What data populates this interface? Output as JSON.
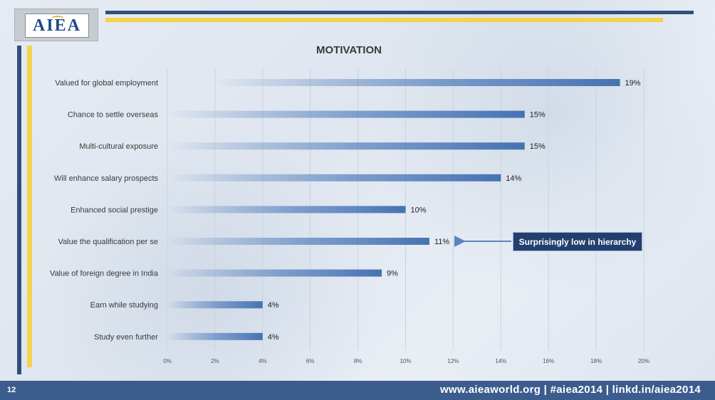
{
  "footer": {
    "page_number": "12",
    "text": "www.aieaworld.org | #aiea2014 | linkd.in/aiea2014"
  },
  "logo": {
    "text": "AIEA"
  },
  "callout": {
    "text": "Surprisingly low in hierarchy"
  },
  "colors": {
    "navy": "#334e7a",
    "yellow": "#f3d34a",
    "bar": "#4f7ab8",
    "callout_bg": "#233f6f"
  },
  "chart_data": {
    "type": "bar",
    "orientation": "horizontal",
    "title": "MOTIVATION",
    "categories": [
      "Valued for global employment",
      "Chance to settle overseas",
      "Multi-cultural exposure",
      "Will enhance salary prospects",
      "Enhanced social prestige",
      "Value the qualification per se",
      "Value of foreign degree in India",
      "Earn while studying",
      "Study even further"
    ],
    "values": [
      19,
      15,
      15,
      14,
      10,
      11,
      9,
      4,
      4
    ],
    "data_labels": [
      "19%",
      "15%",
      "15%",
      "14%",
      "10%",
      "11%",
      "9%",
      "4%",
      "4%"
    ],
    "xlim": [
      0,
      20
    ],
    "x_ticks": [
      "0%",
      "2%",
      "4%",
      "6%",
      "8%",
      "10%",
      "12%",
      "14%",
      "16%",
      "18%",
      "20%"
    ],
    "grid": true,
    "legend": "none"
  }
}
